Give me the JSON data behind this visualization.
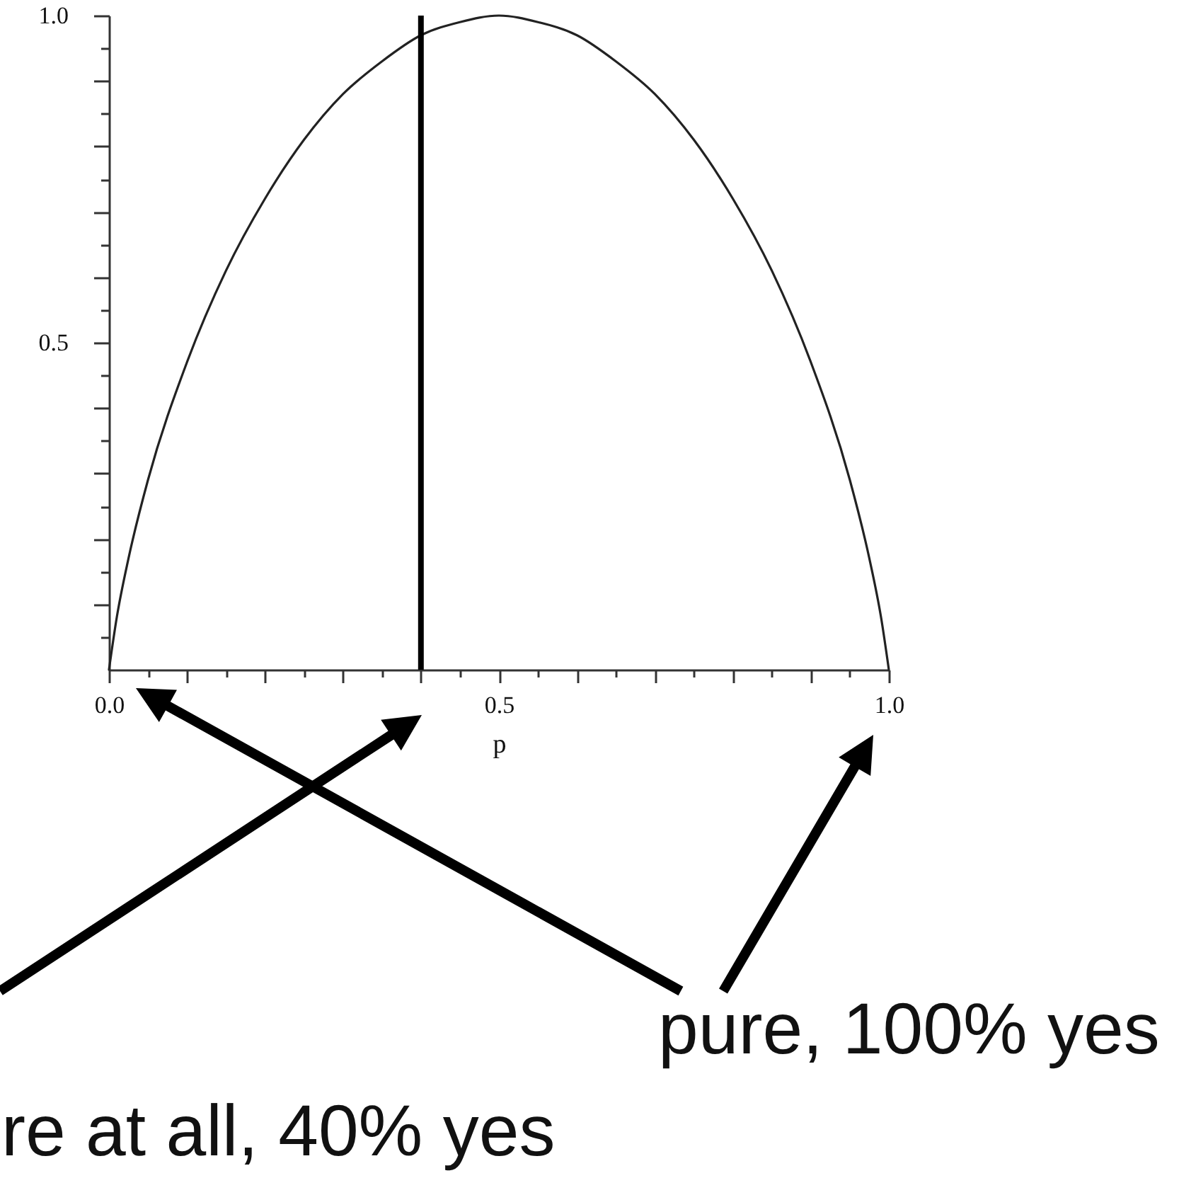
{
  "chart_data": {
    "type": "line",
    "xlabel": "p",
    "x": [
      0,
      0.01,
      0.025,
      0.05,
      0.1,
      0.15,
      0.2,
      0.25,
      0.3,
      0.35,
      0.4,
      0.45,
      0.5,
      0.55,
      0.6,
      0.65,
      0.7,
      0.75,
      0.8,
      0.85,
      0.9,
      0.95,
      0.975,
      0.99,
      1
    ],
    "values": [
      0,
      0.08,
      0.17,
      0.29,
      0.47,
      0.61,
      0.72,
      0.81,
      0.88,
      0.93,
      0.97,
      0.99,
      1,
      0.99,
      0.97,
      0.93,
      0.88,
      0.81,
      0.72,
      0.61,
      0.47,
      0.29,
      0.17,
      0.08,
      0
    ],
    "color": "#222222",
    "xlim": [
      0,
      1
    ],
    "ylim": [
      0,
      1
    ],
    "xticks": [
      {
        "value": 0,
        "label": "0.0"
      },
      {
        "value": 0.05,
        "label": null
      },
      {
        "value": 0.1,
        "label": null
      },
      {
        "value": 0.15,
        "label": null
      },
      {
        "value": 0.2,
        "label": null
      },
      {
        "value": 0.25,
        "label": null
      },
      {
        "value": 0.3,
        "label": null
      },
      {
        "value": 0.35,
        "label": null
      },
      {
        "value": 0.4,
        "label": null
      },
      {
        "value": 0.45,
        "label": null
      },
      0.5,
      {
        "value": 0.55,
        "label": null
      },
      {
        "value": 0.6,
        "label": null
      },
      {
        "value": 0.65,
        "label": null
      },
      {
        "value": 0.7,
        "label": null
      },
      {
        "value": 0.75,
        "label": null
      },
      {
        "value": 0.8,
        "label": null
      },
      {
        "value": 0.85,
        "label": null
      },
      {
        "value": 0.9,
        "label": null
      },
      {
        "value": 0.95,
        "label": null
      },
      {
        "value": 1,
        "label": "1.0"
      }
    ],
    "yticks": [
      {
        "value": 0.05,
        "label": null
      },
      {
        "value": 0.1,
        "label": null
      },
      {
        "value": 0.15,
        "label": null
      },
      {
        "value": 0.2,
        "label": null
      },
      {
        "value": 0.25,
        "label": null
      },
      {
        "value": 0.3,
        "label": null
      },
      {
        "value": 0.35,
        "label": null
      },
      {
        "value": 0.4,
        "label": null
      },
      {
        "value": 0.45,
        "label": null
      },
      0.5,
      {
        "value": 0.55,
        "label": null
      },
      {
        "value": 0.6,
        "label": null
      },
      {
        "value": 0.65,
        "label": null
      },
      {
        "value": 0.7,
        "label": null
      },
      {
        "value": 0.75,
        "label": null
      },
      {
        "value": 0.8,
        "label": null
      },
      {
        "value": 0.85,
        "label": null
      },
      {
        "value": 0.9,
        "label": null
      },
      {
        "value": 0.95,
        "label": null
      },
      {
        "value": 1,
        "label": "1.0"
      }
    ],
    "ref_lines": [
      {
        "axis": "x",
        "value": 0.4,
        "color": "#000000"
      }
    ],
    "annotations": [
      "re at all, 40% yes",
      "pure, 100% yes"
    ]
  }
}
